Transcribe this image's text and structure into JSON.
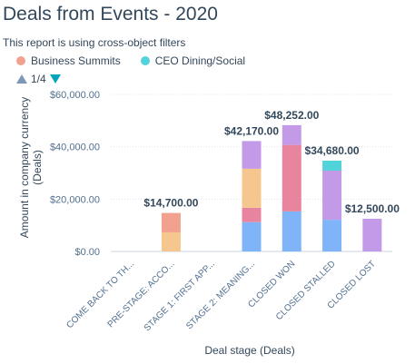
{
  "report": {
    "title": "Deals from Events - 2020",
    "subtitle": "This report is using cross-object filters"
  },
  "legend": [
    {
      "name": "Business Summits",
      "color": "#f2a18f"
    },
    {
      "name": "CEO Dining/Social",
      "color": "#51d3d9"
    }
  ],
  "pager": {
    "text": "1/4",
    "up_icon": "triangle-up-icon",
    "down_icon": "triangle-down-icon",
    "up_color": "#7c98b6",
    "down_color": "#00a4bd"
  },
  "chart_data": {
    "type": "bar",
    "stacked": true,
    "xlabel": "Deal stage (Deals)",
    "ylabel": "Amount in company currency (Deals)",
    "ylim": [
      0,
      60000
    ],
    "y_ticks": [
      0,
      20000,
      40000,
      60000
    ],
    "y_tick_labels": [
      "$0.00",
      "$20,000.00",
      "$40,000.00",
      "$60,000.00"
    ],
    "grid": true,
    "categories": [
      "COME BACK TO TH...",
      "PRE-STAGE: ACCO...",
      "STAGE 1: FIRST APP...",
      "STAGE 2: MEANING...",
      "CLOSED WON",
      "CLOSED STALLED",
      "CLOSED LOST"
    ],
    "totals": [
      0,
      14700,
      0,
      42170,
      48252,
      34680,
      12500
    ],
    "total_labels": [
      "",
      "$14,700.00",
      "",
      "$42,170.00",
      "$48,252.00",
      "$34,680.00",
      "$12,500.00"
    ],
    "segments": [
      {
        "color": "#7fb5f8",
        "values": [
          0,
          0,
          0,
          11200,
          15300,
          12100,
          0
        ]
      },
      {
        "color": "#e8849e",
        "values": [
          0,
          0,
          0,
          5500,
          25400,
          0,
          0
        ]
      },
      {
        "color": "#f5c78e",
        "values": [
          0,
          7300,
          0,
          14900,
          0,
          0,
          0
        ]
      },
      {
        "color": "#f2a18f",
        "values": [
          0,
          7400,
          0,
          0,
          0,
          0,
          0
        ]
      },
      {
        "color": "#c39ae8",
        "values": [
          0,
          0,
          0,
          10570,
          7552,
          18780,
          12500
        ]
      },
      {
        "color": "#51d3d9",
        "values": [
          0,
          0,
          0,
          0,
          0,
          3800,
          0
        ]
      }
    ]
  }
}
